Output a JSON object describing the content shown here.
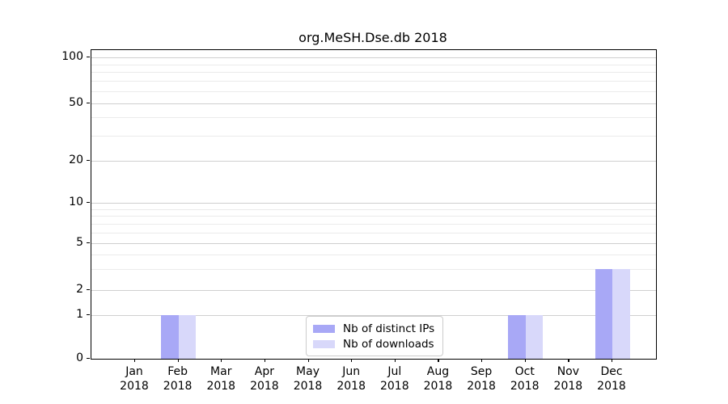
{
  "chart_data": {
    "type": "bar",
    "title": "org.MeSH.Dse.db 2018",
    "year_label": "2018",
    "categories": [
      "Jan",
      "Feb",
      "Mar",
      "Apr",
      "May",
      "Jun",
      "Jul",
      "Aug",
      "Sep",
      "Oct",
      "Nov",
      "Dec"
    ],
    "series": [
      {
        "name": "Nb of distinct IPs",
        "color": "#a8a8f6",
        "values": [
          0,
          1,
          0,
          0,
          0,
          0,
          0,
          0,
          0,
          1,
          0,
          3
        ]
      },
      {
        "name": "Nb of downloads",
        "color": "#d8d8fa",
        "values": [
          0,
          1,
          0,
          0,
          0,
          0,
          0,
          0,
          0,
          1,
          0,
          3
        ]
      }
    ],
    "yticks": [
      0,
      1,
      2,
      5,
      10,
      20,
      50,
      100
    ],
    "minor_gridline_values": [
      3,
      4,
      6,
      7,
      8,
      9,
      30,
      40,
      60,
      70,
      80,
      90
    ],
    "xlabel": "",
    "ylabel": "",
    "scale": "log-like",
    "grid": true,
    "legend_position": "lower-center",
    "colors": {
      "grid_major": "#cfcfcf",
      "grid_minor": "#ebebeb",
      "axis": "#000000",
      "background": "#ffffff"
    }
  }
}
